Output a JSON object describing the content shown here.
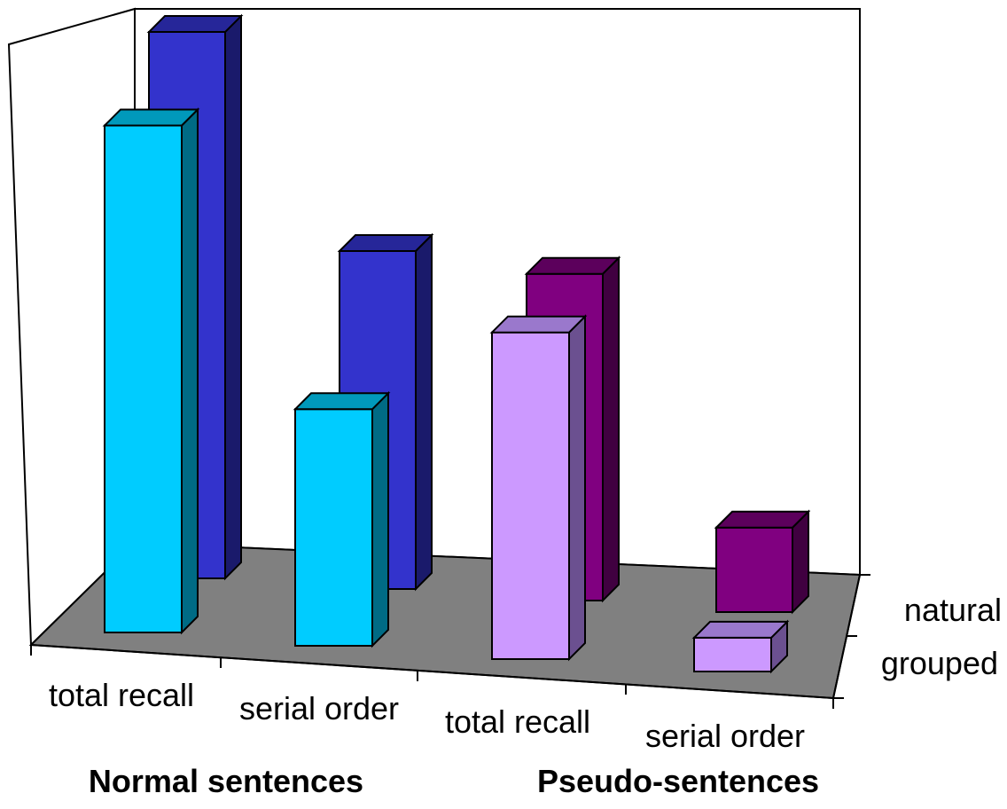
{
  "chart_data": {
    "type": "bar",
    "subtype": "3d-clustered",
    "title": "",
    "categories": [
      "total recall",
      "serial order",
      "total recall",
      "serial order"
    ],
    "groups": [
      {
        "label": "Normal sentences",
        "categories": [
          0,
          1
        ]
      },
      {
        "label": "Pseudo-sentences",
        "categories": [
          2,
          3
        ]
      }
    ],
    "series": [
      {
        "name": "grouped",
        "row": "front",
        "values": [
          0.9,
          0.42,
          0.58,
          0.06
        ],
        "colors": [
          "#00ccff",
          "#00ccff",
          "#cc99ff",
          "#cc99ff"
        ],
        "side_colors": [
          "#006b85",
          "#006b85",
          "#6b5090",
          "#6b5090"
        ],
        "top_colors": [
          "#0099bb",
          "#0099bb",
          "#9a78cc",
          "#9a78cc"
        ]
      },
      {
        "name": "natural",
        "row": "back",
        "values": [
          0.97,
          0.6,
          0.58,
          0.15
        ],
        "colors": [
          "#3333cc",
          "#3333cc",
          "#800080",
          "#800080"
        ],
        "side_colors": [
          "#1a1a6b",
          "#1a1a6b",
          "#400040",
          "#400040"
        ],
        "top_colors": [
          "#262699",
          "#262699",
          "#5c005c",
          "#5c005c"
        ]
      }
    ],
    "depth_labels": [
      "natural",
      "grouped"
    ],
    "axis_visible": false,
    "gridlines": false,
    "floor_color": "#808080",
    "legend": "none"
  }
}
